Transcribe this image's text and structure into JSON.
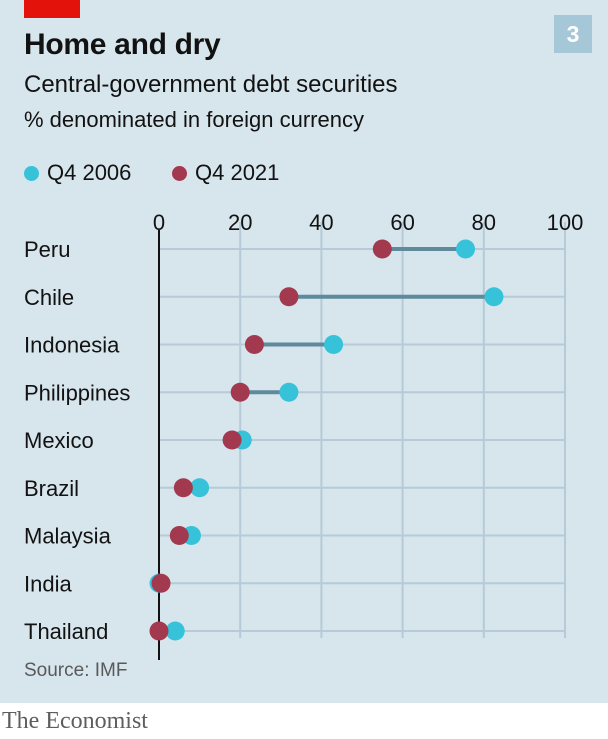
{
  "header": {
    "chart_number": "3",
    "title": "Home and dry",
    "subtitle": "Central-government debt securities",
    "subtitle2": "% denominated in foreign currency"
  },
  "legend": [
    {
      "label": "Q4 2006",
      "color": "#36c3d9"
    },
    {
      "label": "Q4 2021",
      "color": "#a3394f"
    }
  ],
  "chart_data": {
    "type": "dumbbell",
    "title": "Home and dry",
    "subtitle": "Central-government debt securities",
    "ylabel": "% denominated in foreign currency",
    "xlim": [
      0,
      100
    ],
    "x_ticks": [
      0,
      20,
      40,
      60,
      80,
      100
    ],
    "grid": true,
    "legend_position": "top-left",
    "categories": [
      "Peru",
      "Chile",
      "Indonesia",
      "Philippines",
      "Mexico",
      "Brazil",
      "Malaysia",
      "India",
      "Thailand"
    ],
    "series": [
      {
        "name": "Q4 2006",
        "color": "#36c3d9",
        "values": [
          75.5,
          82.5,
          43,
          32,
          20.5,
          10,
          8,
          0,
          4
        ]
      },
      {
        "name": "Q4 2021",
        "color": "#a3394f",
        "values": [
          55,
          32,
          23.5,
          20,
          18,
          6,
          5,
          0.5,
          0
        ]
      }
    ]
  },
  "footer": {
    "source": "Source: IMF",
    "brand": "The Economist"
  }
}
